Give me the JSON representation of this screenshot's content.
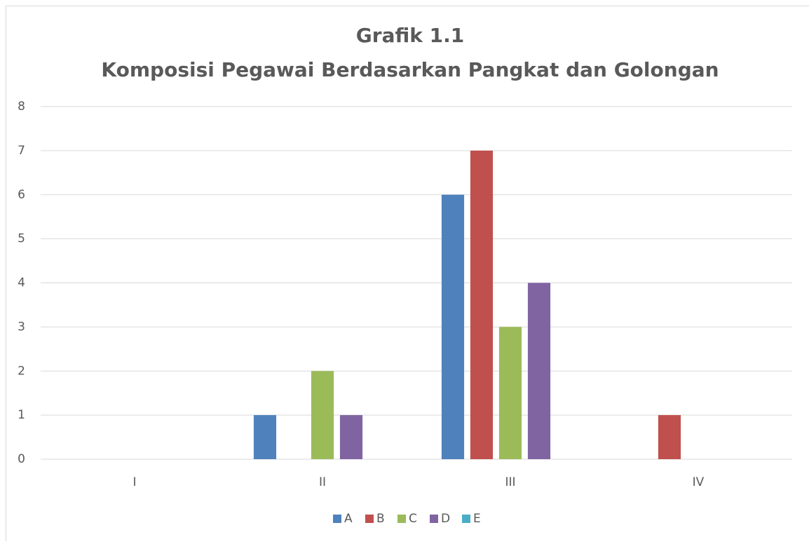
{
  "chart_data": {
    "type": "bar",
    "title": "Grafik 1.1",
    "subtitle": "Komposisi Pegawai Berdasarkan Pangkat dan Golongan",
    "categories": [
      "I",
      "II",
      "III",
      "IV"
    ],
    "series": [
      {
        "name": "A",
        "color": "#4f81bd",
        "values": [
          0,
          1,
          6,
          0
        ]
      },
      {
        "name": "B",
        "color": "#c0504d",
        "values": [
          0,
          0,
          7,
          1
        ]
      },
      {
        "name": "C",
        "color": "#9bbb59",
        "values": [
          0,
          2,
          3,
          0
        ]
      },
      {
        "name": "D",
        "color": "#8064a2",
        "values": [
          0,
          1,
          4,
          0
        ]
      },
      {
        "name": "E",
        "color": "#4bacc6",
        "values": [
          0,
          0,
          0,
          0
        ]
      }
    ],
    "ylim": [
      0,
      8
    ],
    "yticks": [
      0,
      1,
      2,
      3,
      4,
      5,
      6,
      7,
      8
    ],
    "grid": true,
    "legend": "bottom"
  }
}
